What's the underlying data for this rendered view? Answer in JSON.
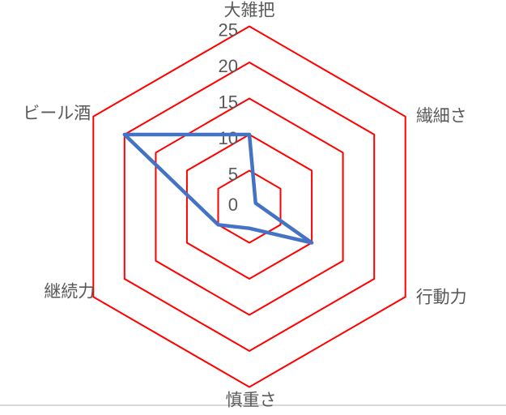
{
  "chart_data": {
    "type": "radar",
    "title": "",
    "categories": [
      "大雑把",
      "繊細さ",
      "行動力",
      "慎重さ",
      "継続力",
      "ビール酒"
    ],
    "values": [
      10,
      1,
      10,
      3,
      5,
      20
    ],
    "rlim": [
      0,
      25
    ],
    "ring_values": [
      5,
      10,
      15,
      20,
      25
    ],
    "tick_labels": [
      "0",
      "5",
      "10",
      "15",
      "20",
      "25"
    ],
    "tick_values": [
      0,
      5,
      10,
      15,
      20,
      25
    ],
    "grid_shape": "hexagon",
    "legend": "none",
    "colors": {
      "grid": "#ff0000",
      "series": "#4472c4",
      "label": "#595959",
      "divider": "#d9d9d9"
    }
  }
}
